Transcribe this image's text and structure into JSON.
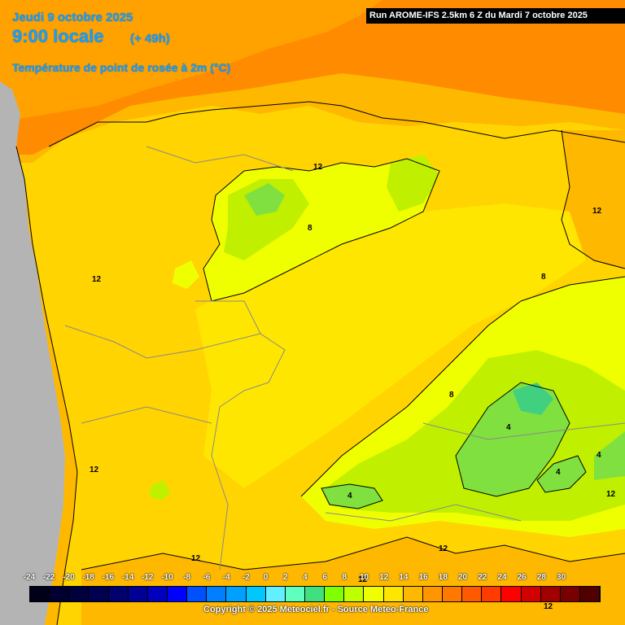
{
  "header": {
    "date": "Jeudi 9 octobre 2025",
    "time": "9:00 locale",
    "offset": "(+ 49h)",
    "parameter": "Température de point de rosée à 2m (°C)"
  },
  "run_banner": "Run AROME-IFS 2.5km 6 Z du Mardi 7 octobre 2025",
  "contour_labels": [
    "12",
    "12",
    "12",
    "12",
    "8",
    "8",
    "8",
    "4",
    "4",
    "4",
    "4",
    "12",
    "12",
    "12",
    "12",
    "12",
    "12"
  ],
  "colors": {
    "land_main": "#ffd400",
    "warm_12_14": "#ffb800",
    "warm_14_16": "#ff8c00",
    "band_10_12": "#ffe600",
    "band_8_10": "#f0ff00",
    "band_6_8": "#c0f000",
    "band_4_6": "#80e040",
    "band_2_4": "#40d060",
    "ocean": "#b4b4b4"
  },
  "legend": {
    "ticks": [
      "-24",
      "-22",
      "-20",
      "-18",
      "-16",
      "-14",
      "-12",
      "-10",
      "-8",
      "-6",
      "-4",
      "-2",
      "0",
      "2",
      "4",
      "6",
      "8",
      "10",
      "12",
      "14",
      "16",
      "18",
      "20",
      "22",
      "24",
      "26",
      "28",
      "30"
    ],
    "colors": [
      "#000018",
      "#000030",
      "#00003c",
      "#000050",
      "#00006e",
      "#000096",
      "#0000be",
      "#0000ff",
      "#0050ff",
      "#0080ff",
      "#00a0ff",
      "#00c8ff",
      "#60f0ff",
      "#60ffc0",
      "#40e080",
      "#80ff00",
      "#c0ff00",
      "#f0ff00",
      "#ffe600",
      "#ffb800",
      "#ff9600",
      "#ff7800",
      "#ff5a00",
      "#ff3c00",
      "#ff0000",
      "#d20000",
      "#a00000",
      "#780000",
      "#500000"
    ]
  },
  "copyright": "Copyright © 2025 Meteociel.fr - Source Meteo-France"
}
